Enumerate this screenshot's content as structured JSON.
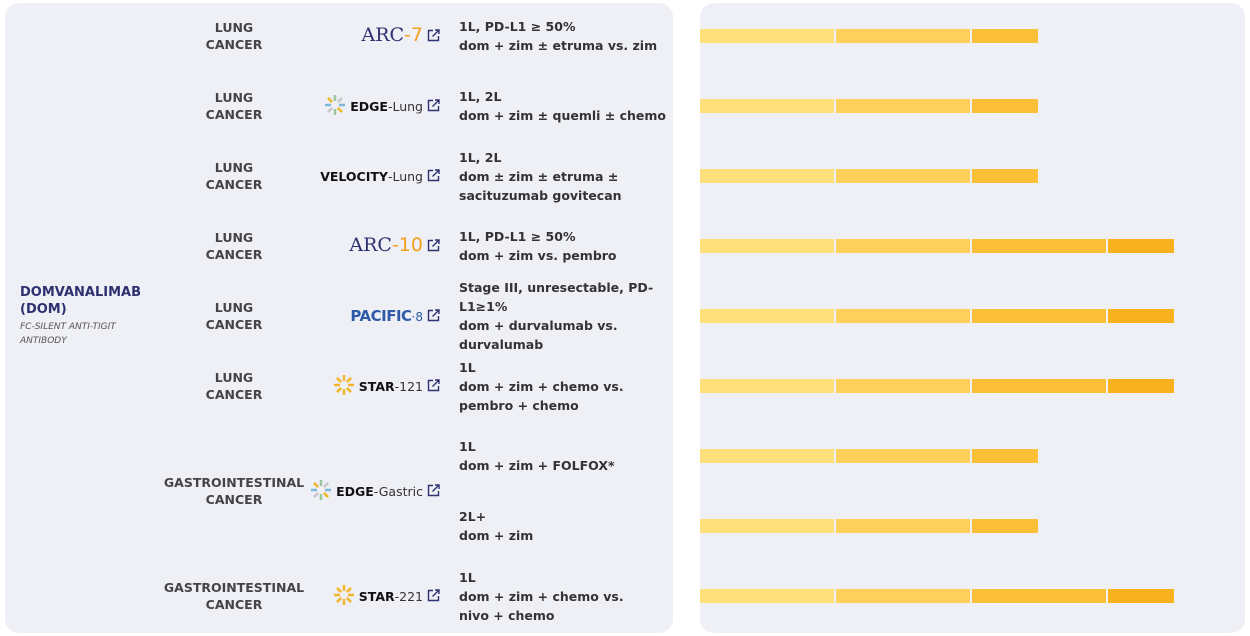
{
  "drug": {
    "name": "DOMVANALIMAB (DOM)",
    "subtitle": "FC-SILENT ANTI-TIGIT ANTIBODY"
  },
  "trials": [
    {
      "cancer": [
        "LUNG",
        "CANCER"
      ],
      "logo": {
        "style": "arc",
        "main": "ARC",
        "suffix": "-7"
      },
      "arms": [
        {
          "lines": [
            "1L, PD-L1 ≥ 50%",
            "dom + zim ± etruma vs. zim"
          ],
          "segments": 3
        }
      ]
    },
    {
      "cancer": [
        "LUNG",
        "CANCER"
      ],
      "logo": {
        "style": "edge",
        "main": "EDGE",
        "suffix": "-Lung"
      },
      "arms": [
        {
          "lines": [
            "1L, 2L",
            "dom + zim ± quemli ± chemo"
          ],
          "segments": 3
        }
      ]
    },
    {
      "cancer": [
        "LUNG",
        "CANCER"
      ],
      "logo": {
        "style": "velocity",
        "main": "VELOCITY",
        "suffix": "-Lung"
      },
      "arms": [
        {
          "lines": [
            "1L, 2L",
            "dom ± zim ± etruma ±",
            "sacituzumab govitecan"
          ],
          "segments": 3
        }
      ]
    },
    {
      "cancer": [
        "LUNG",
        "CANCER"
      ],
      "logo": {
        "style": "arc",
        "main": "ARC",
        "suffix": "-10"
      },
      "arms": [
        {
          "lines": [
            "1L, PD-L1 ≥ 50%",
            "dom + zim vs. pembro"
          ],
          "segments": 4
        }
      ]
    },
    {
      "cancer": [
        "LUNG",
        "CANCER"
      ],
      "logo": {
        "style": "pacific",
        "main": "PACIFIC",
        "suffix": "·8"
      },
      "arms": [
        {
          "lines": [
            "Stage III, unresectable, PD-",
            "L1≥1%",
            "dom + durvalumab vs.",
            "durvalumab"
          ],
          "segments": 4
        }
      ]
    },
    {
      "cancer": [
        "LUNG",
        "CANCER"
      ],
      "logo": {
        "style": "star",
        "main": "STAR",
        "suffix": "-121"
      },
      "arms": [
        {
          "lines": [
            "1L",
            "dom + zim + chemo vs.",
            "pembro + chemo"
          ],
          "segments": 4
        }
      ]
    },
    {
      "cancer": [
        "GASTROINTESTINAL",
        "CANCER"
      ],
      "logo": {
        "style": "edge",
        "main": "EDGE",
        "suffix": "-Gastric"
      },
      "arms": [
        {
          "lines": [
            "1L",
            "dom + zim + FOLFOX*"
          ],
          "segments": 3
        },
        {
          "lines": [
            "2L+",
            "dom + zim"
          ],
          "segments": 3
        }
      ]
    },
    {
      "cancer": [
        "GASTROINTESTINAL",
        "CANCER"
      ],
      "logo": {
        "style": "star",
        "main": "STAR",
        "suffix": "-221"
      },
      "arms": [
        {
          "lines": [
            "1L",
            "dom + zim + chemo vs.",
            "nivo + chemo"
          ],
          "segments": 4
        }
      ]
    }
  ]
}
